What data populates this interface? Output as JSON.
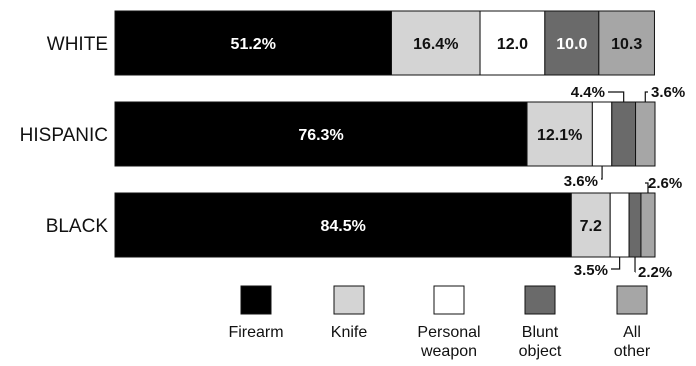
{
  "chart_data": {
    "type": "bar",
    "orientation": "horizontal",
    "stacked": true,
    "percent": true,
    "title": "",
    "xlabel": "",
    "ylabel": "",
    "categories": [
      "WHITE",
      "HISPANIC",
      "BLACK"
    ],
    "series": [
      {
        "name": "Firearm",
        "color": "#000000",
        "values": [
          51.2,
          76.3,
          84.5
        ]
      },
      {
        "name": "Knife",
        "color": "#d4d4d4",
        "values": [
          16.4,
          12.1,
          7.2
        ]
      },
      {
        "name": "Personal weapon",
        "color": "#ffffff",
        "values": [
          12.0,
          3.6,
          3.5
        ]
      },
      {
        "name": "Blunt object",
        "color": "#6a6a6a",
        "values": [
          10.0,
          4.4,
          2.2
        ]
      },
      {
        "name": "All other",
        "color": "#a6a6a6",
        "values": [
          10.3,
          3.6,
          2.6
        ]
      }
    ],
    "value_labels": [
      [
        "51.2%",
        "16.4%",
        "12.0",
        "10.0",
        "10.3"
      ],
      [
        "76.3%",
        "12.1%",
        "3.6%",
        "4.4%",
        "3.6%"
      ],
      [
        "84.5%",
        "7.2",
        "3.5%",
        "2.2%",
        "2.6%"
      ]
    ],
    "legend_position": "bottom",
    "legend_labels": [
      [
        "Firearm"
      ],
      [
        "Knife"
      ],
      [
        "Personal",
        "weapon"
      ],
      [
        "Blunt",
        "object"
      ],
      [
        "All",
        "other"
      ]
    ],
    "grid": false
  }
}
